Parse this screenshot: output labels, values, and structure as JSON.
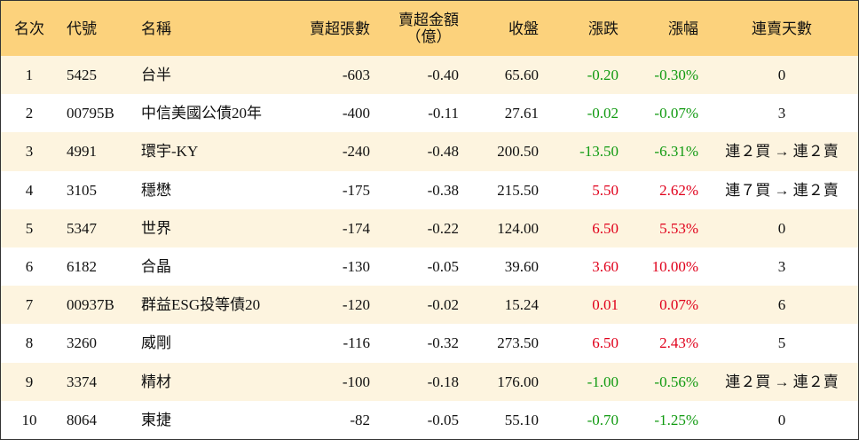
{
  "table": {
    "header": [
      "名次",
      "代號",
      "名稱",
      "賣超張數",
      "賣超金額\n（億）",
      "收盤",
      "漲跌",
      "漲幅",
      "連賣天數"
    ],
    "rows": [
      [
        "1",
        "5425",
        "台半",
        "-603",
        "-0.40",
        "65.60",
        "-0.20",
        "-0.30%",
        "0"
      ],
      [
        "2",
        "00795B",
        "中信美國公債20年",
        "-400",
        "-0.11",
        "27.61",
        "-0.02",
        "-0.07%",
        "3"
      ],
      [
        "3",
        "4991",
        "環宇-KY",
        "-240",
        "-0.48",
        "200.50",
        "-13.50",
        "-6.31%",
        "連２買 → 連２賣"
      ],
      [
        "4",
        "3105",
        "穩懋",
        "-175",
        "-0.38",
        "215.50",
        "5.50",
        "2.62%",
        "連７買 → 連２賣"
      ],
      [
        "5",
        "5347",
        "世界",
        "-174",
        "-0.22",
        "124.00",
        "6.50",
        "5.53%",
        "0"
      ],
      [
        "6",
        "6182",
        "合晶",
        "-130",
        "-0.05",
        "39.60",
        "3.60",
        "10.00%",
        "3"
      ],
      [
        "7",
        "00937B",
        "群益ESG投等債20",
        "-120",
        "-0.02",
        "15.24",
        "0.01",
        "0.07%",
        "6"
      ],
      [
        "8",
        "3260",
        "威剛",
        "-116",
        "-0.32",
        "273.50",
        "6.50",
        "2.43%",
        "5"
      ],
      [
        "9",
        "3374",
        "精材",
        "-100",
        "-0.18",
        "176.00",
        "-1.00",
        "-0.56%",
        "連２買 → 連２賣"
      ],
      [
        "10",
        "8064",
        "東捷",
        "-82",
        "-0.05",
        "55.10",
        "-0.70",
        "-1.25%",
        "0"
      ]
    ]
  }
}
